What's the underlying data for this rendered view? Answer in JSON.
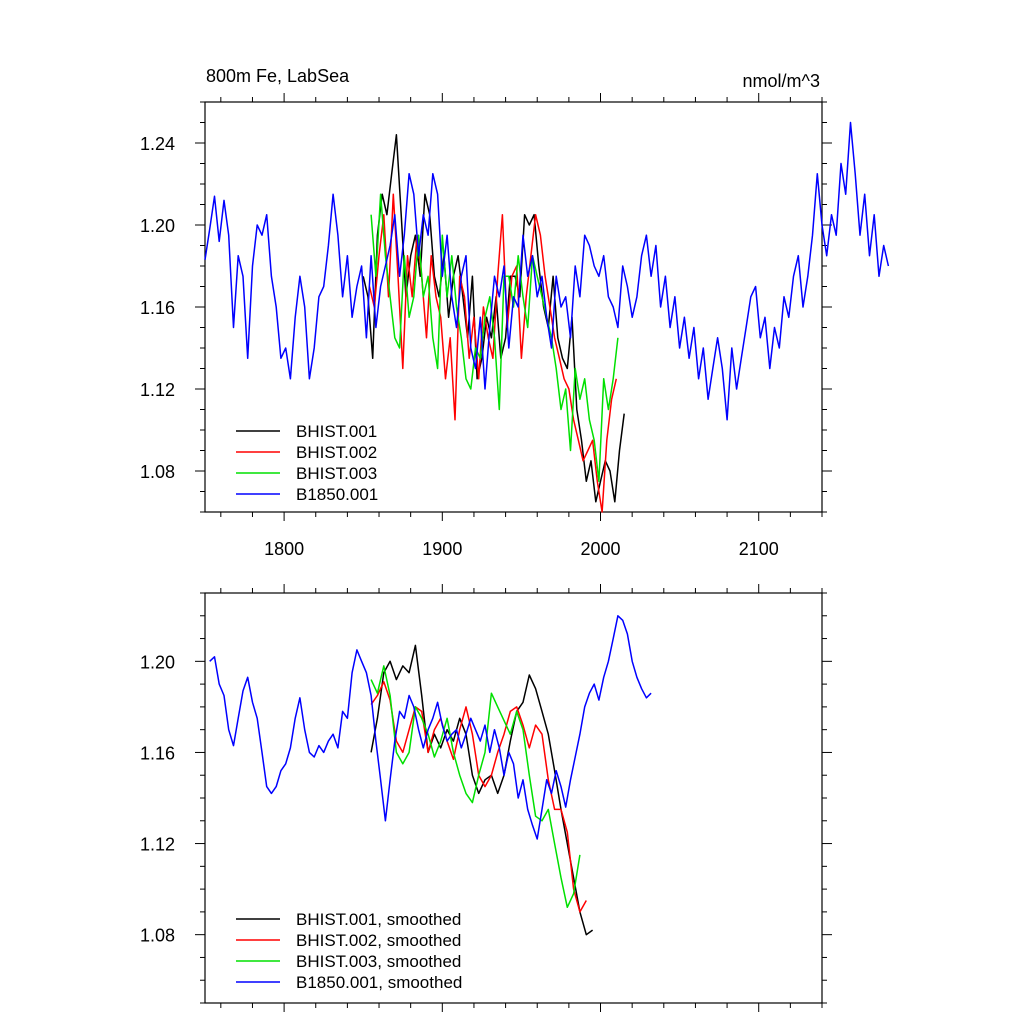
{
  "chart_data": [
    {
      "type": "line",
      "title": "800m Fe, LabSea",
      "units": "nmol/m^3",
      "xlim": [
        1750,
        2140
      ],
      "ylim": [
        1.06,
        1.26
      ],
      "x_ticks": [
        1800,
        1900,
        2000,
        2100
      ],
      "x_tick_labels": [
        "1800",
        "1900",
        "2000",
        "2100"
      ],
      "y_ticks": [
        1.08,
        1.12,
        1.16,
        1.2,
        1.24
      ],
      "y_tick_labels": [
        "1.08",
        "1.12",
        "1.16",
        "1.20",
        "1.24"
      ],
      "legend_position": "bottom-left",
      "series": [
        {
          "name": "BHIST.001",
          "color": "#000000",
          "x_start": 1850,
          "step": 3,
          "values": [
            1.175,
            1.165,
            1.135,
            1.195,
            1.215,
            1.205,
            1.225,
            1.244,
            1.205,
            1.165,
            1.185,
            1.195,
            1.175,
            1.215,
            1.205,
            1.175,
            1.165,
            1.185,
            1.155,
            1.175,
            1.185,
            1.165,
            1.145,
            1.175,
            1.125,
            1.135,
            1.155,
            1.145,
            1.165,
            1.135,
            1.145,
            1.175,
            1.175,
            1.165,
            1.205,
            1.2,
            1.205,
            1.18,
            1.16,
            1.15,
            1.175,
            1.145,
            1.135,
            1.13,
            1.155,
            1.11,
            1.095,
            1.075,
            1.085,
            1.065,
            1.075,
            1.085,
            1.08,
            1.065,
            1.09,
            1.108
          ]
        },
        {
          "name": "BHIST.002",
          "color": "#ff0000",
          "x_start": 1854,
          "step": 3,
          "values": [
            1.17,
            1.16,
            1.185,
            1.205,
            1.165,
            1.215,
            1.175,
            1.13,
            1.185,
            1.165,
            1.195,
            1.175,
            1.145,
            1.185,
            1.165,
            1.155,
            1.125,
            1.145,
            1.105,
            1.175,
            1.165,
            1.135,
            1.155,
            1.125,
            1.16,
            1.145,
            1.135,
            1.175,
            1.205,
            1.15,
            1.175,
            1.18,
            1.135,
            1.165,
            1.185,
            1.205,
            1.195,
            1.175,
            1.16,
            1.145,
            1.135,
            1.125,
            1.12,
            1.105,
            1.095,
            1.085,
            1.09,
            1.095,
            1.075,
            1.06,
            1.095,
            1.115,
            1.125
          ]
        },
        {
          "name": "BHIST.003",
          "color": "#00e000",
          "x_start": 1855,
          "step": 3,
          "values": [
            1.205,
            1.175,
            1.215,
            1.185,
            1.165,
            1.145,
            1.14,
            1.185,
            1.155,
            1.165,
            1.195,
            1.165,
            1.175,
            1.145,
            1.13,
            1.195,
            1.165,
            1.185,
            1.16,
            1.145,
            1.125,
            1.12,
            1.14,
            1.135,
            1.155,
            1.165,
            1.145,
            1.11,
            1.175,
            1.175,
            1.16,
            1.185,
            1.165,
            1.15,
            1.185,
            1.175,
            1.165,
            1.155,
            1.145,
            1.13,
            1.11,
            1.12,
            1.09,
            1.13,
            1.115,
            1.125,
            1.105,
            1.095,
            1.075,
            1.125,
            1.11,
            1.125,
            1.145
          ]
        },
        {
          "name": "B1850.001",
          "color": "#0000ff",
          "x_start": 1750,
          "step": 3,
          "values": [
            1.183,
            1.198,
            1.214,
            1.192,
            1.212,
            1.195,
            1.15,
            1.185,
            1.175,
            1.135,
            1.18,
            1.2,
            1.195,
            1.205,
            1.175,
            1.16,
            1.135,
            1.14,
            1.125,
            1.155,
            1.175,
            1.16,
            1.125,
            1.14,
            1.165,
            1.17,
            1.19,
            1.215,
            1.195,
            1.165,
            1.185,
            1.155,
            1.17,
            1.18,
            1.145,
            1.185,
            1.15,
            1.17,
            1.18,
            1.19,
            1.205,
            1.175,
            1.195,
            1.225,
            1.215,
            1.185,
            1.205,
            1.195,
            1.225,
            1.215,
            1.175,
            1.195,
            1.165,
            1.15,
            1.175,
            1.185,
            1.14,
            1.13,
            1.155,
            1.12,
            1.15,
            1.175,
            1.165,
            1.18,
            1.14,
            1.165,
            1.16,
            1.195,
            1.175,
            1.185,
            1.165,
            1.175,
            1.155,
            1.14,
            1.175,
            1.16,
            1.165,
            1.145,
            1.18,
            1.165,
            1.195,
            1.19,
            1.18,
            1.175,
            1.185,
            1.165,
            1.16,
            1.15,
            1.18,
            1.17,
            1.155,
            1.165,
            1.185,
            1.195,
            1.175,
            1.19,
            1.16,
            1.175,
            1.15,
            1.165,
            1.14,
            1.155,
            1.135,
            1.15,
            1.125,
            1.14,
            1.115,
            1.13,
            1.145,
            1.13,
            1.105,
            1.14,
            1.12,
            1.135,
            1.15,
            1.165,
            1.17,
            1.145,
            1.155,
            1.13,
            1.15,
            1.14,
            1.165,
            1.155,
            1.175,
            1.185,
            1.16,
            1.175,
            1.195,
            1.225,
            1.2,
            1.185,
            1.205,
            1.195,
            1.23,
            1.215,
            1.25,
            1.225,
            1.195,
            1.215,
            1.185,
            1.205,
            1.175,
            1.19,
            1.18
          ]
        }
      ]
    },
    {
      "type": "line",
      "title": "",
      "xlim": [
        1750,
        2140
      ],
      "ylim": [
        1.05,
        1.23
      ],
      "x_ticks": [
        1800,
        1900,
        2000,
        2100
      ],
      "y_ticks": [
        1.08,
        1.12,
        1.16,
        1.2
      ],
      "y_tick_labels": [
        "1.08",
        "1.12",
        "1.16",
        "1.20"
      ],
      "legend_position": "bottom-left",
      "series": [
        {
          "name": "BHIST.001, smoothed",
          "color": "#000000",
          "x_start": 1855,
          "step": 4,
          "values": [
            1.16,
            1.175,
            1.195,
            1.2,
            1.192,
            1.198,
            1.195,
            1.207,
            1.185,
            1.16,
            1.168,
            1.162,
            1.17,
            1.165,
            1.175,
            1.168,
            1.15,
            1.142,
            1.148,
            1.15,
            1.142,
            1.15,
            1.165,
            1.178,
            1.182,
            1.194,
            1.188,
            1.178,
            1.168,
            1.152,
            1.135,
            1.12,
            1.105,
            1.09,
            1.08,
            1.082
          ]
        },
        {
          "name": "BHIST.002, smoothed",
          "color": "#ff0000",
          "x_start": 1855,
          "step": 4,
          "values": [
            1.181,
            1.185,
            1.191,
            1.183,
            1.165,
            1.16,
            1.17,
            1.18,
            1.178,
            1.16,
            1.17,
            1.175,
            1.165,
            1.157,
            1.17,
            1.18,
            1.168,
            1.15,
            1.145,
            1.15,
            1.16,
            1.168,
            1.178,
            1.18,
            1.172,
            1.162,
            1.172,
            1.168,
            1.148,
            1.135,
            1.135,
            1.125,
            1.1,
            1.09,
            1.095
          ]
        },
        {
          "name": "BHIST.003, smoothed",
          "color": "#00e000",
          "x_start": 1855,
          "step": 4,
          "values": [
            1.192,
            1.186,
            1.198,
            1.185,
            1.16,
            1.155,
            1.16,
            1.18,
            1.175,
            1.168,
            1.158,
            1.165,
            1.175,
            1.16,
            1.15,
            1.142,
            1.138,
            1.15,
            1.16,
            1.186,
            1.18,
            1.174,
            1.168,
            1.178,
            1.17,
            1.15,
            1.132,
            1.13,
            1.135,
            1.12,
            1.105,
            1.092,
            1.098,
            1.115
          ]
        },
        {
          "name": "B1850.001, smoothed",
          "color": "#0000ff",
          "x_start": 1753,
          "step": 3,
          "values": [
            1.2,
            1.202,
            1.19,
            1.185,
            1.17,
            1.163,
            1.175,
            1.187,
            1.193,
            1.182,
            1.175,
            1.16,
            1.145,
            1.142,
            1.145,
            1.152,
            1.155,
            1.162,
            1.175,
            1.184,
            1.17,
            1.16,
            1.158,
            1.163,
            1.16,
            1.165,
            1.168,
            1.162,
            1.178,
            1.175,
            1.195,
            1.205,
            1.2,
            1.195,
            1.185,
            1.165,
            1.148,
            1.13,
            1.148,
            1.165,
            1.178,
            1.175,
            1.185,
            1.18,
            1.17,
            1.162,
            1.17,
            1.175,
            1.182,
            1.172,
            1.165,
            1.168,
            1.17,
            1.162,
            1.168,
            1.175,
            1.17,
            1.165,
            1.172,
            1.16,
            1.17,
            1.162,
            1.15,
            1.16,
            1.155,
            1.14,
            1.148,
            1.135,
            1.128,
            1.122,
            1.135,
            1.148,
            1.142,
            1.152,
            1.145,
            1.136,
            1.148,
            1.158,
            1.168,
            1.18,
            1.186,
            1.19,
            1.183,
            1.193,
            1.2,
            1.21,
            1.22,
            1.218,
            1.212,
            1.2,
            1.193,
            1.188,
            1.184,
            1.186
          ]
        }
      ]
    }
  ]
}
